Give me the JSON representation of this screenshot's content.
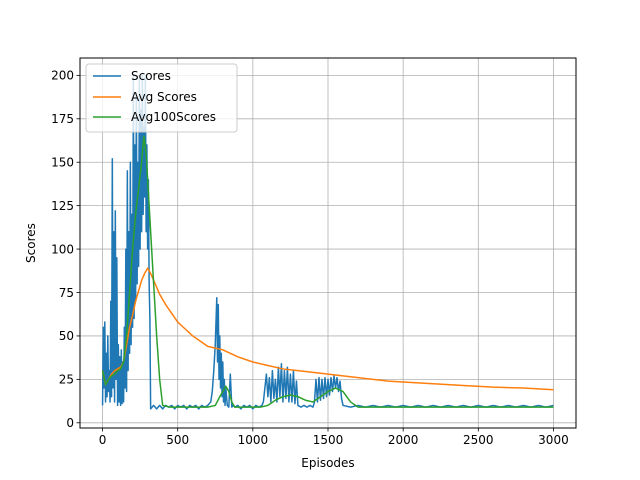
{
  "chart_data": {
    "type": "line",
    "title": "",
    "xlabel": "Episodes",
    "ylabel": "Scores",
    "xlim": [
      -150,
      3150
    ],
    "ylim": [
      -3,
      210
    ],
    "grid": true,
    "legend_position": "top-left",
    "x_ticks": [
      0,
      500,
      1000,
      1500,
      2000,
      2500,
      3000
    ],
    "y_ticks": [
      0,
      25,
      50,
      75,
      100,
      125,
      150,
      175,
      200
    ],
    "series": [
      {
        "name": "Scores",
        "color": "#1f77b4",
        "points": [
          [
            0,
            10
          ],
          [
            5,
            55
          ],
          [
            10,
            20
          ],
          [
            15,
            58
          ],
          [
            20,
            12
          ],
          [
            25,
            40
          ],
          [
            30,
            15
          ],
          [
            35,
            50
          ],
          [
            40,
            18
          ],
          [
            45,
            30
          ],
          [
            50,
            12
          ],
          [
            55,
            70
          ],
          [
            60,
            15
          ],
          [
            65,
            152
          ],
          [
            70,
            20
          ],
          [
            75,
            110
          ],
          [
            80,
            12
          ],
          [
            85,
            122
          ],
          [
            90,
            25
          ],
          [
            95,
            95
          ],
          [
            100,
            10
          ],
          [
            105,
            45
          ],
          [
            110,
            12
          ],
          [
            115,
            38
          ],
          [
            120,
            10
          ],
          [
            125,
            42
          ],
          [
            130,
            11
          ],
          [
            135,
            35
          ],
          [
            140,
            12
          ],
          [
            145,
            55
          ],
          [
            150,
            20
          ],
          [
            155,
            100
          ],
          [
            160,
            18
          ],
          [
            165,
            145
          ],
          [
            170,
            30
          ],
          [
            175,
            110
          ],
          [
            180,
            40
          ],
          [
            185,
            150
          ],
          [
            190,
            45
          ],
          [
            195,
            120
          ],
          [
            200,
            55
          ],
          [
            205,
            200
          ],
          [
            210,
            60
          ],
          [
            215,
            160
          ],
          [
            220,
            70
          ],
          [
            225,
            190
          ],
          [
            230,
            80
          ],
          [
            235,
            150
          ],
          [
            240,
            90
          ],
          [
            245,
            200
          ],
          [
            250,
            100
          ],
          [
            255,
            180
          ],
          [
            260,
            110
          ],
          [
            265,
            200
          ],
          [
            270,
            120
          ],
          [
            275,
            170
          ],
          [
            280,
            130
          ],
          [
            285,
            200
          ],
          [
            290,
            110
          ],
          [
            295,
            160
          ],
          [
            300,
            100
          ],
          [
            305,
            140
          ],
          [
            310,
            80
          ],
          [
            315,
            60
          ],
          [
            320,
            8
          ],
          [
            340,
            10
          ],
          [
            360,
            8
          ],
          [
            380,
            10
          ],
          [
            400,
            8
          ],
          [
            420,
            10
          ],
          [
            440,
            9
          ],
          [
            460,
            10
          ],
          [
            480,
            8
          ],
          [
            500,
            10
          ],
          [
            520,
            9
          ],
          [
            540,
            10
          ],
          [
            560,
            8
          ],
          [
            580,
            10
          ],
          [
            600,
            9
          ],
          [
            620,
            10
          ],
          [
            640,
            8
          ],
          [
            660,
            10
          ],
          [
            680,
            9
          ],
          [
            700,
            10
          ],
          [
            720,
            12
          ],
          [
            730,
            18
          ],
          [
            740,
            30
          ],
          [
            750,
            45
          ],
          [
            760,
            72
          ],
          [
            765,
            35
          ],
          [
            770,
            68
          ],
          [
            775,
            25
          ],
          [
            780,
            50
          ],
          [
            785,
            20
          ],
          [
            790,
            40
          ],
          [
            795,
            15
          ],
          [
            800,
            35
          ],
          [
            805,
            12
          ],
          [
            810,
            25
          ],
          [
            815,
            10
          ],
          [
            820,
            20
          ],
          [
            830,
            10
          ],
          [
            840,
            9
          ],
          [
            850,
            28
          ],
          [
            860,
            9
          ],
          [
            870,
            10
          ],
          [
            880,
            9
          ],
          [
            900,
            10
          ],
          [
            920,
            8
          ],
          [
            940,
            10
          ],
          [
            960,
            9
          ],
          [
            980,
            10
          ],
          [
            1000,
            8
          ],
          [
            1020,
            10
          ],
          [
            1040,
            9
          ],
          [
            1060,
            10
          ],
          [
            1070,
            12
          ],
          [
            1080,
            20
          ],
          [
            1090,
            28
          ],
          [
            1100,
            15
          ],
          [
            1110,
            26
          ],
          [
            1120,
            12
          ],
          [
            1130,
            30
          ],
          [
            1140,
            14
          ],
          [
            1150,
            25
          ],
          [
            1160,
            12
          ],
          [
            1170,
            32
          ],
          [
            1180,
            15
          ],
          [
            1190,
            34
          ],
          [
            1200,
            12
          ],
          [
            1210,
            30
          ],
          [
            1220,
            14
          ],
          [
            1230,
            32
          ],
          [
            1240,
            12
          ],
          [
            1250,
            28
          ],
          [
            1260,
            12
          ],
          [
            1270,
            30
          ],
          [
            1280,
            11
          ],
          [
            1290,
            24
          ],
          [
            1300,
            10
          ],
          [
            1320,
            9
          ],
          [
            1340,
            10
          ],
          [
            1360,
            9
          ],
          [
            1380,
            10
          ],
          [
            1400,
            9
          ],
          [
            1410,
            12
          ],
          [
            1420,
            25
          ],
          [
            1430,
            12
          ],
          [
            1440,
            26
          ],
          [
            1450,
            13
          ],
          [
            1460,
            25
          ],
          [
            1470,
            14
          ],
          [
            1480,
            26
          ],
          [
            1490,
            15
          ],
          [
            1500,
            25
          ],
          [
            1510,
            16
          ],
          [
            1520,
            26
          ],
          [
            1530,
            18
          ],
          [
            1540,
            27
          ],
          [
            1550,
            20
          ],
          [
            1560,
            26
          ],
          [
            1570,
            18
          ],
          [
            1580,
            24
          ],
          [
            1590,
            14
          ],
          [
            1600,
            10
          ],
          [
            1650,
            9
          ],
          [
            1700,
            10
          ],
          [
            1750,
            9
          ],
          [
            1800,
            10
          ],
          [
            1850,
            9
          ],
          [
            1900,
            10
          ],
          [
            1950,
            9
          ],
          [
            2000,
            10
          ],
          [
            2050,
            9
          ],
          [
            2100,
            10
          ],
          [
            2150,
            9
          ],
          [
            2200,
            10
          ],
          [
            2250,
            9
          ],
          [
            2300,
            10
          ],
          [
            2350,
            9
          ],
          [
            2400,
            10
          ],
          [
            2450,
            9
          ],
          [
            2500,
            10
          ],
          [
            2550,
            9
          ],
          [
            2600,
            10
          ],
          [
            2650,
            9
          ],
          [
            2700,
            10
          ],
          [
            2750,
            9
          ],
          [
            2800,
            10
          ],
          [
            2850,
            9
          ],
          [
            2900,
            10
          ],
          [
            2950,
            9
          ],
          [
            3000,
            10
          ]
        ]
      },
      {
        "name": "Avg Scores",
        "color": "#ff7f0e",
        "points": [
          [
            0,
            30
          ],
          [
            20,
            22
          ],
          [
            40,
            25
          ],
          [
            60,
            28
          ],
          [
            80,
            30
          ],
          [
            100,
            31
          ],
          [
            120,
            32
          ],
          [
            140,
            35
          ],
          [
            160,
            45
          ],
          [
            180,
            55
          ],
          [
            200,
            62
          ],
          [
            220,
            70
          ],
          [
            240,
            76
          ],
          [
            260,
            82
          ],
          [
            280,
            86
          ],
          [
            300,
            89
          ],
          [
            320,
            86
          ],
          [
            340,
            82
          ],
          [
            380,
            74
          ],
          [
            420,
            68
          ],
          [
            460,
            63
          ],
          [
            500,
            58
          ],
          [
            550,
            54
          ],
          [
            600,
            50
          ],
          [
            650,
            47
          ],
          [
            700,
            44
          ],
          [
            750,
            43
          ],
          [
            800,
            42
          ],
          [
            850,
            40
          ],
          [
            900,
            38
          ],
          [
            1000,
            35
          ],
          [
            1100,
            33
          ],
          [
            1200,
            31
          ],
          [
            1300,
            30
          ],
          [
            1400,
            29
          ],
          [
            1500,
            28
          ],
          [
            1600,
            27
          ],
          [
            1700,
            26
          ],
          [
            1800,
            25
          ],
          [
            1900,
            24
          ],
          [
            2000,
            23.5
          ],
          [
            2200,
            22.5
          ],
          [
            2400,
            21.5
          ],
          [
            2600,
            20.5
          ],
          [
            2800,
            20
          ],
          [
            3000,
            19
          ]
        ]
      },
      {
        "name": "Avg100Scores",
        "color": "#2ca02c",
        "points": [
          [
            0,
            30
          ],
          [
            20,
            22
          ],
          [
            40,
            25
          ],
          [
            60,
            27
          ],
          [
            80,
            28
          ],
          [
            100,
            30
          ],
          [
            120,
            31
          ],
          [
            140,
            35
          ],
          [
            160,
            50
          ],
          [
            180,
            75
          ],
          [
            200,
            100
          ],
          [
            220,
            120
          ],
          [
            240,
            135
          ],
          [
            260,
            150
          ],
          [
            275,
            165
          ],
          [
            290,
            155
          ],
          [
            300,
            140
          ],
          [
            320,
            110
          ],
          [
            340,
            80
          ],
          [
            360,
            50
          ],
          [
            380,
            25
          ],
          [
            400,
            10
          ],
          [
            450,
            9
          ],
          [
            500,
            9
          ],
          [
            600,
            9
          ],
          [
            700,
            9
          ],
          [
            750,
            10
          ],
          [
            780,
            15
          ],
          [
            800,
            18
          ],
          [
            820,
            21
          ],
          [
            840,
            18
          ],
          [
            860,
            12
          ],
          [
            880,
            9
          ],
          [
            950,
            9
          ],
          [
            1000,
            9
          ],
          [
            1050,
            9
          ],
          [
            1100,
            10
          ],
          [
            1150,
            13
          ],
          [
            1200,
            15
          ],
          [
            1250,
            16
          ],
          [
            1300,
            15
          ],
          [
            1350,
            13
          ],
          [
            1400,
            12
          ],
          [
            1450,
            15
          ],
          [
            1500,
            18
          ],
          [
            1550,
            20
          ],
          [
            1600,
            18
          ],
          [
            1650,
            12
          ],
          [
            1700,
            9
          ],
          [
            1800,
            9
          ],
          [
            2000,
            9
          ],
          [
            2200,
            9
          ],
          [
            2400,
            9
          ],
          [
            2600,
            9
          ],
          [
            2800,
            9
          ],
          [
            3000,
            9
          ]
        ]
      }
    ]
  }
}
